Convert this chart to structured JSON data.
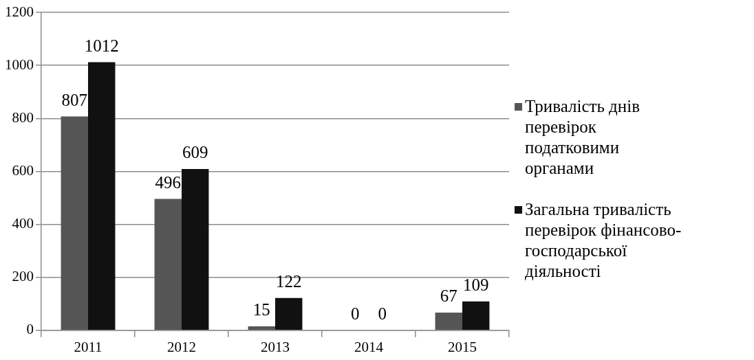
{
  "chart_data": {
    "type": "bar",
    "categories": [
      "2011",
      "2012",
      "2013",
      "2014",
      "2015"
    ],
    "series": [
      {
        "name": "Тривалість днів перевірок податковими органами",
        "color": "#555555",
        "values": [
          807,
          496,
          15,
          0,
          67
        ]
      },
      {
        "name": "Загальна тривалість перевірок фінансово-господарської діяльності",
        "color": "#111111",
        "values": [
          1012,
          609,
          122,
          0,
          109
        ]
      }
    ],
    "ylim": [
      0,
      1200
    ],
    "yticks": [
      0,
      200,
      400,
      600,
      800,
      1000,
      1200
    ],
    "grid": "y",
    "legend": "right",
    "data_labels": true
  }
}
